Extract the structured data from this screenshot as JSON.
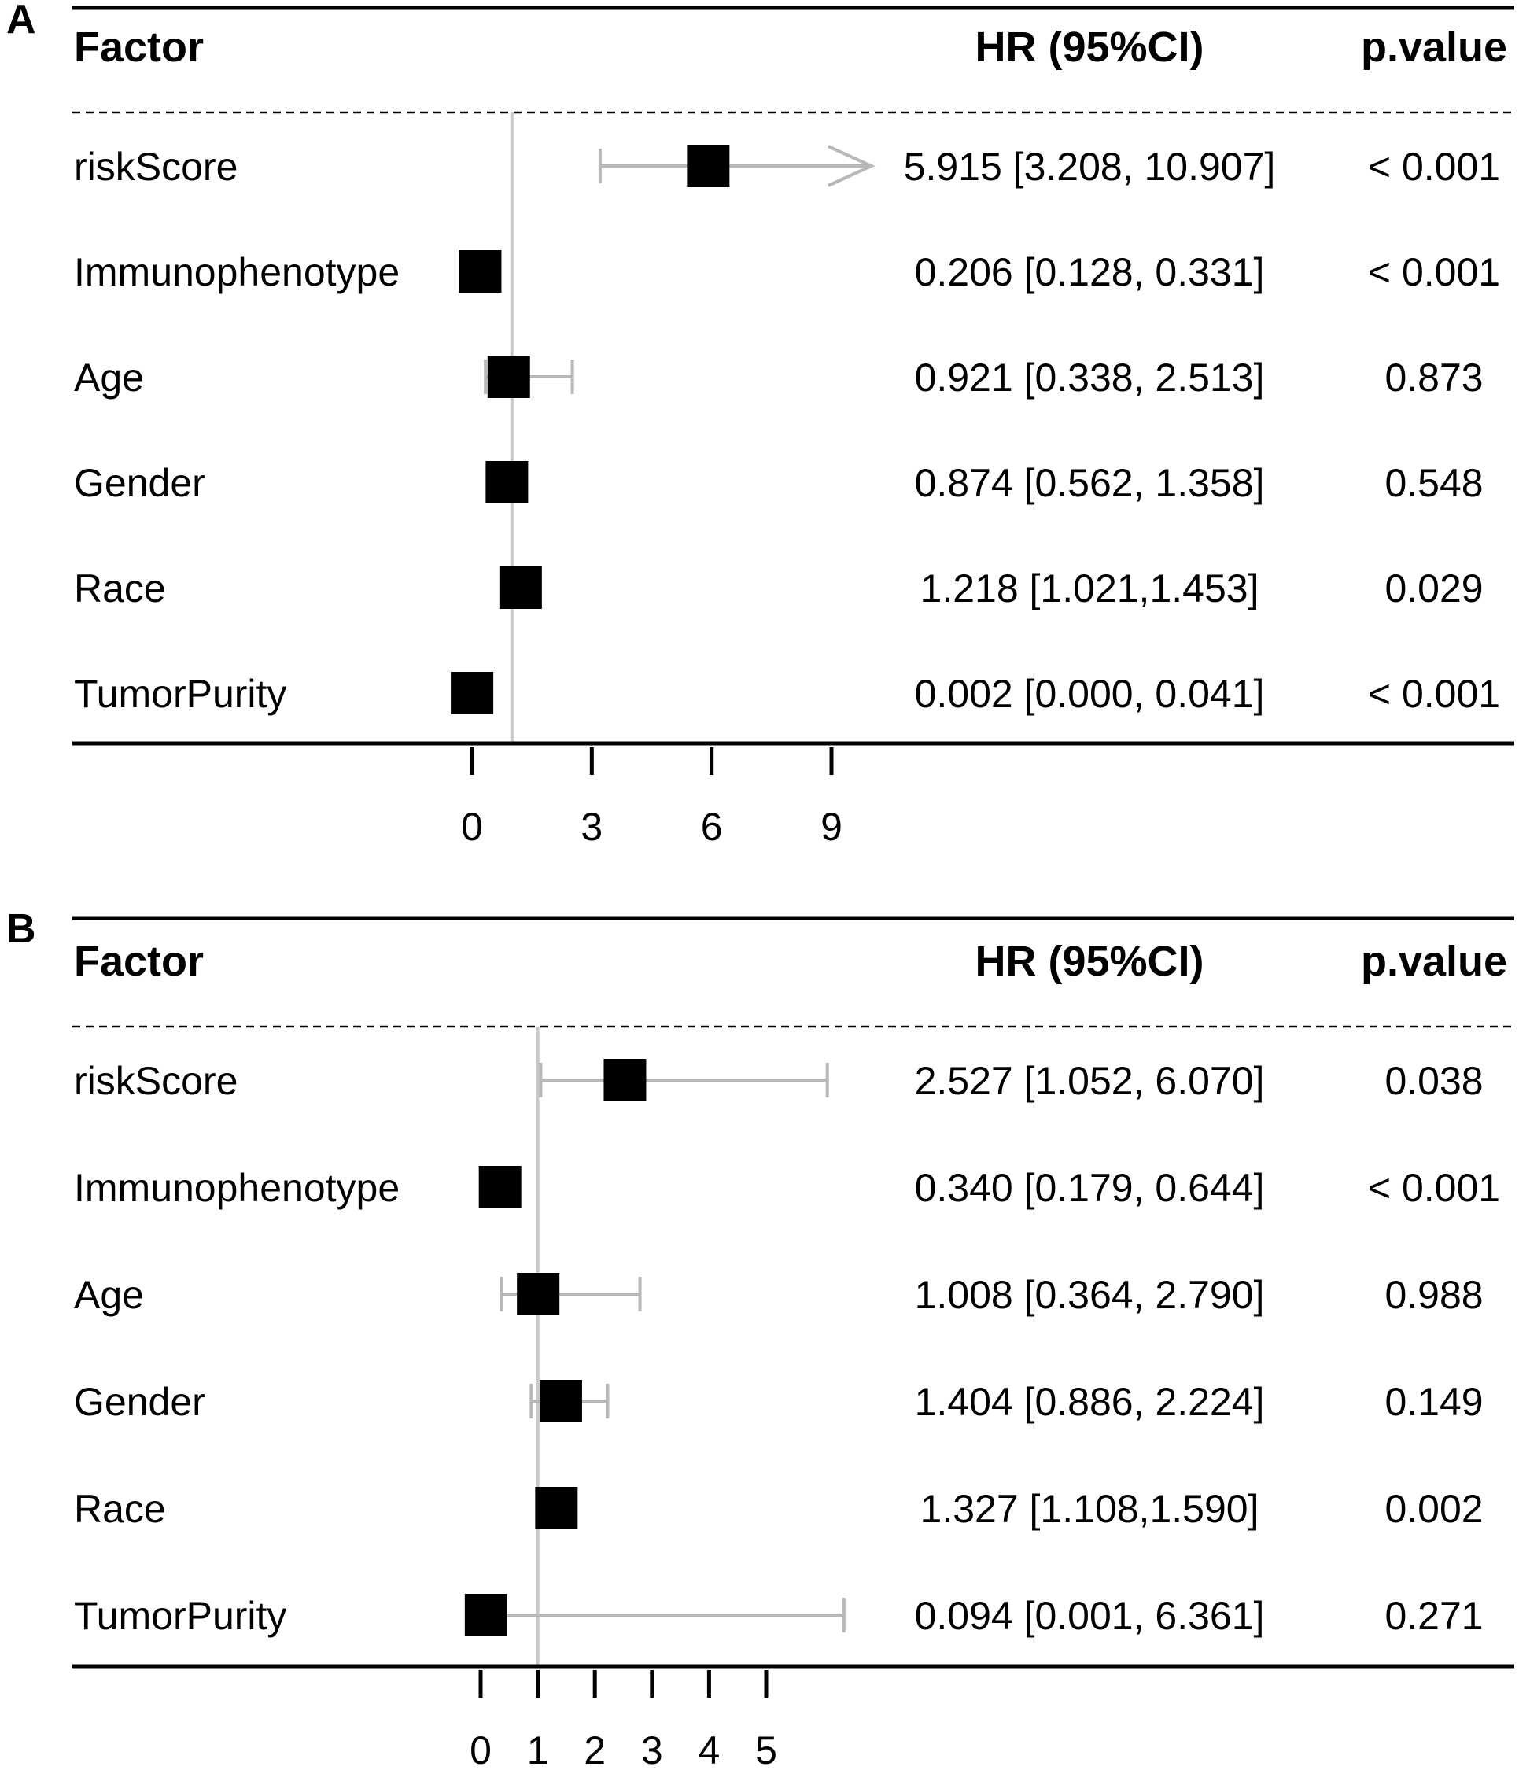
{
  "chart_data": [
    {
      "type": "forest",
      "panel_label": "A",
      "columns": {
        "factor": "Factor",
        "hr": "HR (95%CI)",
        "p": "p.value"
      },
      "reference_line": 1,
      "xlim": [
        -0.2,
        10.0
      ],
      "ticks": [
        {
          "value": 0,
          "label": "0"
        },
        {
          "value": 3,
          "label": "3"
        },
        {
          "value": 6,
          "label": "6"
        },
        {
          "value": 9,
          "label": "9"
        }
      ],
      "rows": [
        {
          "factor": "riskScore",
          "hr": 5.915,
          "lower": 3.208,
          "upper": 10.907,
          "ci_text": "5.915 [3.208, 10.907]",
          "p_text": "< 0.001",
          "upper_clipped": true
        },
        {
          "factor": "Immunophenotype",
          "hr": 0.206,
          "lower": 0.128,
          "upper": 0.331,
          "ci_text": "0.206 [0.128, 0.331]",
          "p_text": "< 0.001"
        },
        {
          "factor": "Age",
          "hr": 0.921,
          "lower": 0.338,
          "upper": 2.513,
          "ci_text": "0.921 [0.338, 2.513]",
          "p_text": "0.873"
        },
        {
          "factor": "Gender",
          "hr": 0.874,
          "lower": 0.562,
          "upper": 1.358,
          "ci_text": "0.874 [0.562, 1.358]",
          "p_text": "0.548"
        },
        {
          "factor": "Race",
          "hr": 1.218,
          "lower": 1.021,
          "upper": 1.453,
          "ci_text": "1.218 [1.021,1.453]",
          "p_text": "0.029"
        },
        {
          "factor": "TumorPurity",
          "hr": 0.002,
          "lower": 0.0,
          "upper": 0.041,
          "ci_text": "0.002 [0.000, 0.041]",
          "p_text": "< 0.001"
        }
      ]
    },
    {
      "type": "forest",
      "panel_label": "B",
      "columns": {
        "factor": "Factor",
        "hr": "HR (95%CI)",
        "p": "p.value"
      },
      "reference_line": 1,
      "xlim": [
        -0.1,
        6.5
      ],
      "ticks": [
        {
          "value": 0,
          "label": "0"
        },
        {
          "value": 1,
          "label": "1"
        },
        {
          "value": 2,
          "label": "2"
        },
        {
          "value": 3,
          "label": "3"
        },
        {
          "value": 4,
          "label": "4"
        },
        {
          "value": 5,
          "label": "5"
        }
      ],
      "rows": [
        {
          "factor": "riskScore",
          "hr": 2.527,
          "lower": 1.052,
          "upper": 6.07,
          "ci_text": "2.527 [1.052, 6.070]",
          "p_text": "0.038"
        },
        {
          "factor": "Immunophenotype",
          "hr": 0.34,
          "lower": 0.179,
          "upper": 0.644,
          "ci_text": "0.340 [0.179, 0.644]",
          "p_text": "< 0.001"
        },
        {
          "factor": "Age",
          "hr": 1.008,
          "lower": 0.364,
          "upper": 2.79,
          "ci_text": "1.008 [0.364, 2.790]",
          "p_text": "0.988"
        },
        {
          "factor": "Gender",
          "hr": 1.404,
          "lower": 0.886,
          "upper": 2.224,
          "ci_text": "1.404 [0.886, 2.224]",
          "p_text": "0.149"
        },
        {
          "factor": "Race",
          "hr": 1.327,
          "lower": 1.108,
          "upper": 1.59,
          "ci_text": "1.327 [1.108,1.590]",
          "p_text": "0.002"
        },
        {
          "factor": "TumorPurity",
          "hr": 0.094,
          "lower": 0.001,
          "upper": 6.361,
          "ci_text": "0.094 [0.001, 6.361]",
          "p_text": "0.271"
        }
      ]
    }
  ]
}
